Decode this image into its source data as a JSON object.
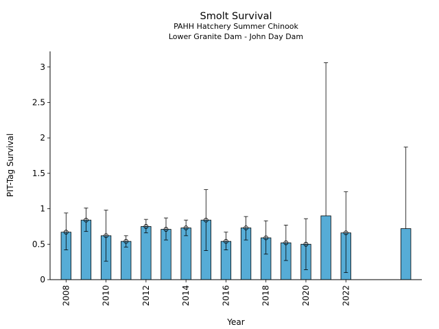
{
  "chart_data": {
    "type": "bar",
    "title": "Smolt Survival",
    "subtitle_lines": [
      "PAHH Hatchery Summer Chinook",
      "Lower Granite Dam - John Day Dam"
    ],
    "xlabel": "Year",
    "ylabel": "PIT-Tag Survival",
    "ylim": [
      0,
      3.22
    ],
    "xlim": [
      2007.2,
      2025.8
    ],
    "yticks": [
      "0",
      "0.5",
      "1",
      "1.5",
      "2",
      "2.5",
      "3"
    ],
    "xticks": [
      "2008",
      "2010",
      "2012",
      "2014",
      "2016",
      "2018",
      "2020",
      "2022"
    ],
    "bar_color": "#56acd6",
    "grid": false,
    "legend": "none",
    "series": [
      {
        "x": [
          2008,
          2009,
          2010,
          2011,
          2012,
          2013,
          2014,
          2015,
          2016,
          2017,
          2018,
          2019,
          2020,
          2021,
          2022,
          2025
        ],
        "values": [
          0.67,
          0.84,
          0.62,
          0.54,
          0.75,
          0.71,
          0.73,
          0.84,
          0.54,
          0.73,
          0.59,
          0.52,
          0.5,
          0.9,
          0.66,
          0.72
        ],
        "err_low": [
          0.42,
          0.68,
          0.26,
          0.46,
          0.66,
          0.56,
          0.62,
          0.41,
          0.42,
          0.56,
          0.36,
          0.27,
          0.14,
          null,
          0.1,
          null
        ],
        "err_high": [
          0.94,
          1.01,
          0.98,
          0.62,
          0.85,
          0.87,
          0.84,
          1.27,
          0.67,
          0.89,
          0.83,
          0.77,
          0.86,
          3.06,
          1.24,
          1.87
        ],
        "point_marker": [
          true,
          true,
          true,
          true,
          true,
          true,
          true,
          true,
          true,
          true,
          true,
          true,
          true,
          false,
          true,
          false
        ]
      }
    ]
  }
}
